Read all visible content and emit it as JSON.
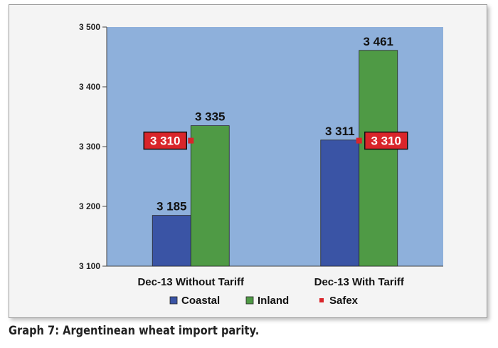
{
  "chart_data": {
    "type": "bar",
    "categories": [
      "Dec-13 Without Tariff",
      "Dec-13 With Tariff"
    ],
    "series": [
      {
        "name": "Coastal",
        "values": [
          3185,
          3311
        ],
        "value_labels": [
          "3 185",
          "3 311"
        ],
        "color": "#3a54a5"
      },
      {
        "name": "Inland",
        "values": [
          3335,
          3461
        ],
        "value_labels": [
          "3 335",
          "3 461"
        ],
        "color": "#4f9a45"
      }
    ],
    "markers": {
      "name": "Safex",
      "values": [
        3310,
        3310
      ],
      "value_labels": [
        "3 310",
        "3 310"
      ],
      "color": "#d9252a"
    },
    "ylim": [
      3100,
      3500
    ],
    "yticks": [
      3100,
      3200,
      3300,
      3400,
      3500
    ],
    "ytick_labels": [
      "3 100",
      "3 200",
      "3 300",
      "3 400",
      "3 500"
    ],
    "plot_background": "#8eb0db",
    "legend_position": "bottom",
    "grid": false
  },
  "caption": "Graph 7: Argentinean wheat import parity."
}
